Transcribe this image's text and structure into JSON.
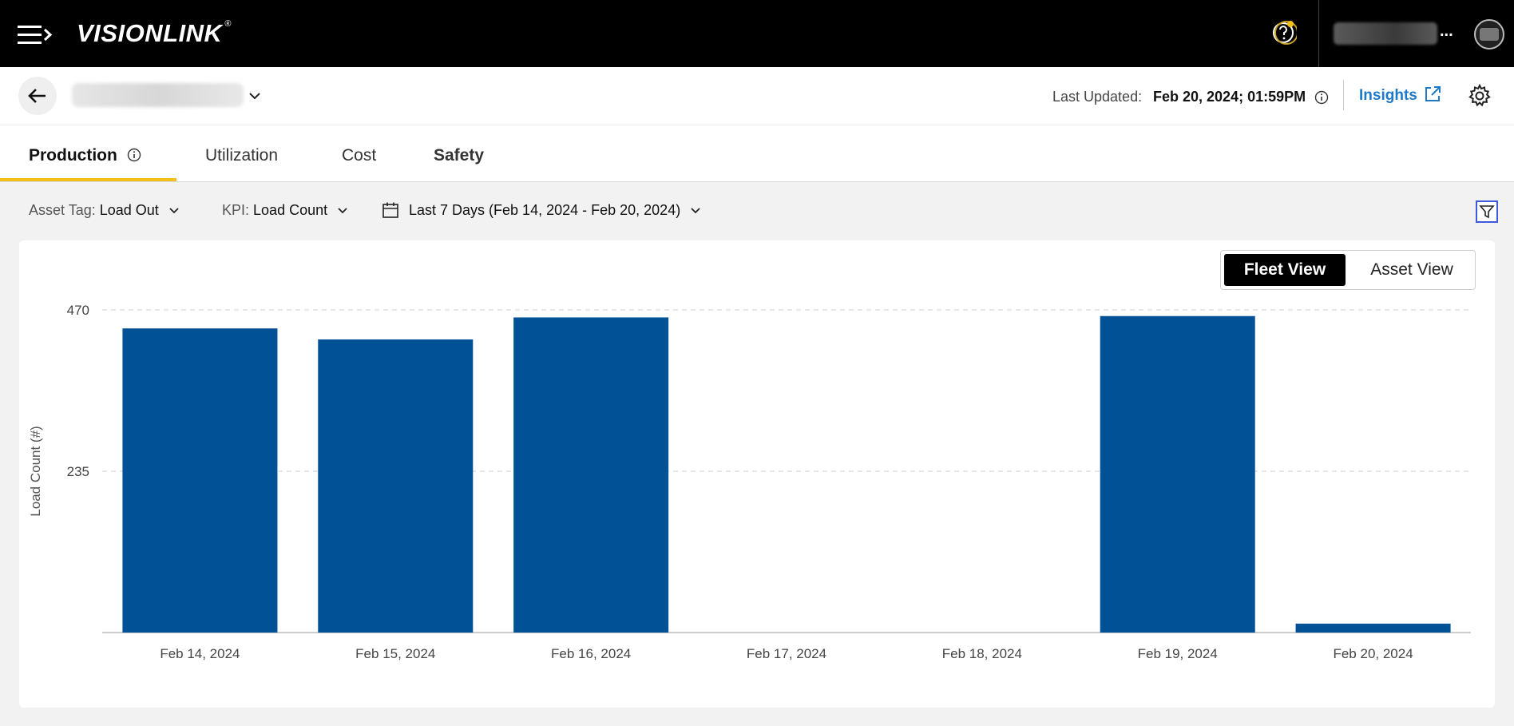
{
  "app": {
    "logo_text": "VISIONLINK",
    "logo_mark": "®",
    "user_more": "..."
  },
  "header": {
    "last_updated_label": "Last Updated:",
    "last_updated_value": "Feb 20, 2024; 01:59PM",
    "insights_label": "Insights"
  },
  "tabs": [
    {
      "label": "Production",
      "active": true
    },
    {
      "label": "Utilization",
      "active": false
    },
    {
      "label": "Cost",
      "active": false
    },
    {
      "label": "Safety",
      "active": false
    }
  ],
  "filters": {
    "asset_tag_label": "Asset Tag:",
    "asset_tag_value": "Load Out",
    "kpi_label": "KPI:",
    "kpi_value": "Load Count",
    "date_range": "Last 7 Days (Feb 14, 2024 - Feb 20, 2024)"
  },
  "view_toggle": {
    "fleet": "Fleet View",
    "asset": "Asset View",
    "selected": "Fleet View"
  },
  "colors": {
    "accent": "#f3c01b",
    "bar": "#005196",
    "link": "#1e7ac8"
  },
  "chart_data": {
    "type": "bar",
    "categories": [
      "Feb 14, 2024",
      "Feb 15, 2024",
      "Feb 16, 2024",
      "Feb 17, 2024",
      "Feb 18, 2024",
      "Feb 19, 2024",
      "Feb 20, 2024"
    ],
    "values": [
      443,
      427,
      459,
      0,
      0,
      461,
      13
    ],
    "ylabel": "Load Count (#)",
    "xlabel": "",
    "ylim": [
      0,
      470
    ],
    "yticks": [
      235,
      470
    ],
    "grid": true
  }
}
